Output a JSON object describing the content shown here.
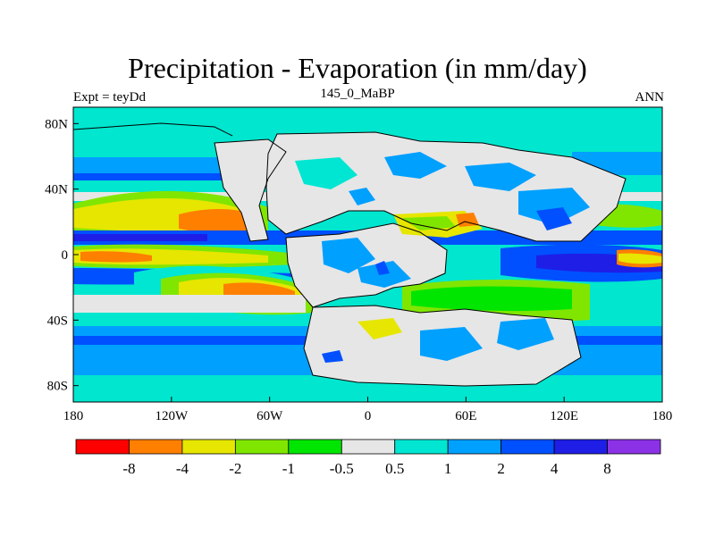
{
  "title": "Precipitation - Evaporation (in mm/day)",
  "left_label": "Expt = teyDd",
  "center_label": "145_0_MaBP",
  "right_label": "ANN",
  "colors": {
    "ocean_bg": "#00e6cf",
    "land_bg": "#e6e6e6",
    "band_red": "#ff0000",
    "band_orange": "#ff7f00",
    "band_yellow": "#e6e600",
    "band_lime": "#80e600",
    "band_green": "#00e600",
    "band_gray": "#e6e6e6",
    "band_cyan": "#00e6d2",
    "band_sky": "#00a0ff",
    "band_blue": "#0050ff",
    "band_darkblue": "#1e1ee6",
    "band_violet": "#8c32e6"
  },
  "chart_data": {
    "type": "heatmap",
    "title": "Precipitation - Evaporation (in mm/day)",
    "units": "mm/day",
    "x_ticks": [
      "180",
      "120W",
      "60W",
      "0",
      "60E",
      "120E",
      "180"
    ],
    "y_ticks": [
      "80N",
      "40N",
      "0",
      "40S",
      "80S"
    ],
    "xlim": [
      -180,
      180
    ],
    "ylim": [
      -90,
      90
    ],
    "colorbar": {
      "labels": [
        "-8",
        "-4",
        "-2",
        "-1",
        "-0.5",
        "0.5",
        "1",
        "2",
        "4",
        "8"
      ],
      "levels": [
        -8,
        -4,
        -2,
        -1,
        -0.5,
        0.5,
        1,
        2,
        4,
        8
      ],
      "colors": [
        "#ff0000",
        "#ff7f00",
        "#e6e600",
        "#80e600",
        "#00e600",
        "#e6e6e6",
        "#00e6d2",
        "#00a0ff",
        "#0050ff",
        "#1e1ee6",
        "#8c32e6"
      ]
    }
  }
}
